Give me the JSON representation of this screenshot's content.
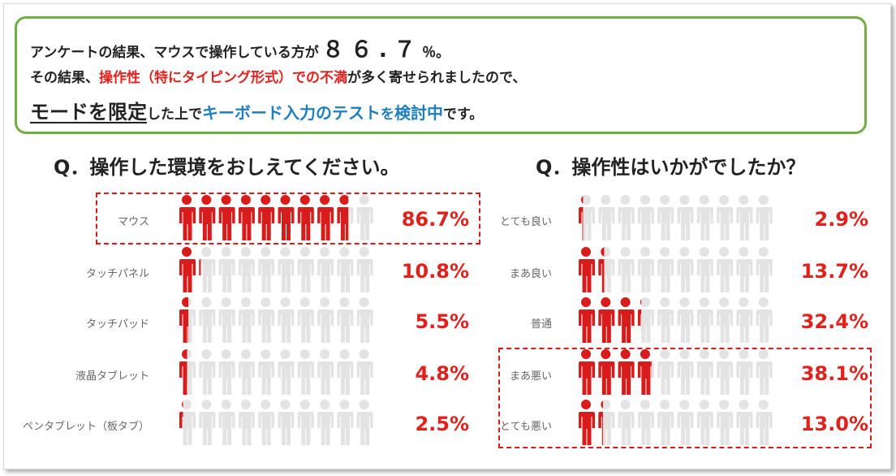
{
  "callout": {
    "line1_a": "アンケートの結果、マウスで操作している方が",
    "line1_b": "８６.７",
    "line1_c": "％。",
    "line2_a": "その結果、",
    "line2_b": "操作性（特にタイピング形式）での不満",
    "line2_c": "が多く寄せられましたので、",
    "line3_a": "モードを限定",
    "line3_b": "した上で",
    "line3_c": "キーボード入力のテスト",
    "line3_d": "を",
    "line3_e": "検討中",
    "line3_f": "です。"
  },
  "chart_data": [
    {
      "type": "pictograph",
      "title": "Q．操作した環境をおしえてください。",
      "icons_per_row": 10,
      "categories": [
        "マウス",
        "タッチパネル",
        "タッチパッド",
        "液晶タブレット",
        "ペンタブレット（板タブ）"
      ],
      "values": [
        86.7,
        10.8,
        5.5,
        4.8,
        2.5
      ],
      "value_labels": [
        "86.7%",
        "10.8%",
        "5.5%",
        "4.8%",
        "2.5%"
      ],
      "highlighted": [
        "マウス"
      ],
      "colors": {
        "filled": "#d81c1c",
        "empty": "#e3e3e3"
      }
    },
    {
      "type": "pictograph",
      "title": "Q．操作性はいかがでしたか？",
      "icons_per_row": 10,
      "categories": [
        "とても良い",
        "まあ良い",
        "普通",
        "まあ悪い",
        "とても悪い"
      ],
      "values": [
        2.9,
        13.7,
        32.4,
        38.1,
        13.0
      ],
      "value_labels": [
        "2.9%",
        "13.7%",
        "32.4%",
        "38.1%",
        "13.0%"
      ],
      "highlighted": [
        "まあ悪い",
        "とても悪い"
      ],
      "colors": {
        "filled": "#d81c1c",
        "empty": "#e3e3e3"
      }
    }
  ]
}
